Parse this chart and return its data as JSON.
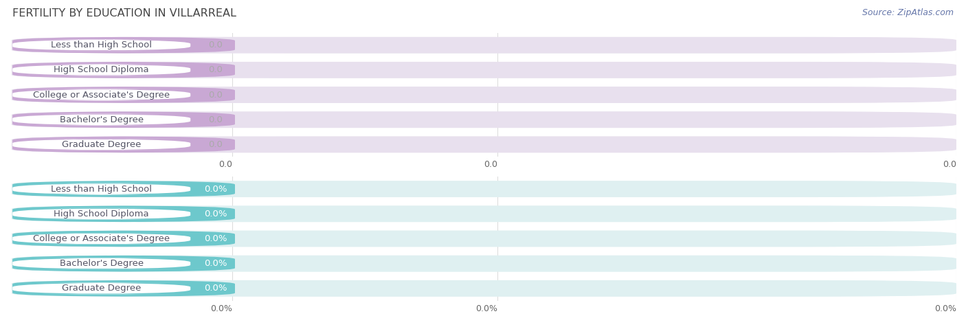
{
  "title": "FERTILITY BY EDUCATION IN VILLARREAL",
  "source_text": "Source: ZipAtlas.com",
  "top_categories": [
    "Less than High School",
    "High School Diploma",
    "College or Associate's Degree",
    "Bachelor's Degree",
    "Graduate Degree"
  ],
  "top_values": [
    0.0,
    0.0,
    0.0,
    0.0,
    0.0
  ],
  "top_bar_color": "#c9a8d4",
  "top_bg_color": "#e8e0ee",
  "top_label_color": "#555566",
  "top_value_color": "#aaaaaa",
  "top_axis_labels": [
    "0.0",
    "0.0",
    "0.0"
  ],
  "bottom_categories": [
    "Less than High School",
    "High School Diploma",
    "College or Associate's Degree",
    "Bachelor's Degree",
    "Graduate Degree"
  ],
  "bottom_values": [
    0.0,
    0.0,
    0.0,
    0.0,
    0.0
  ],
  "bottom_bar_color": "#6dc8cc",
  "bottom_bg_color": "#dff0f1",
  "bottom_label_color": "#555566",
  "bottom_value_color": "#ffffff",
  "bottom_axis_labels": [
    "0.0%",
    "0.0%",
    "0.0%"
  ],
  "xlim_max": 1.0,
  "bar_height": 0.72,
  "bg_color": "#ffffff",
  "grid_color": "#dddddd",
  "title_color": "#444444",
  "source_color": "#6677aa",
  "title_fontsize": 11.5,
  "label_fontsize": 9.5,
  "value_fontsize": 9.5,
  "axis_tick_fontsize": 9,
  "source_fontsize": 9
}
